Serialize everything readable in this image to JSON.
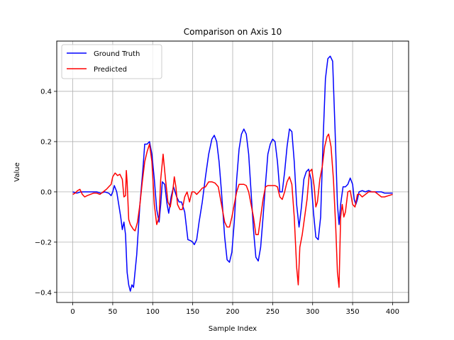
{
  "chart_data": {
    "type": "line",
    "title": "Comparison on Axis 10",
    "xlabel": "Sample Index",
    "ylabel": "Value",
    "xlim": [
      -20,
      420
    ],
    "ylim": [
      -0.44,
      0.6
    ],
    "xticks": [
      0,
      50,
      100,
      150,
      200,
      250,
      300,
      350,
      400
    ],
    "yticks": [
      -0.4,
      -0.2,
      0.0,
      0.2,
      0.4
    ],
    "xtick_labels": [
      "0",
      "50",
      "100",
      "150",
      "200",
      "250",
      "300",
      "350",
      "400"
    ],
    "ytick_labels": [
      "−0.4",
      "−0.2",
      "0.0",
      "0.2",
      "0.4"
    ],
    "grid": true,
    "legend_position": "top-left",
    "series": [
      {
        "name": "Ground Truth",
        "color": "#0000ff",
        "points": [
          [
            0,
            0.0
          ],
          [
            5,
            -0.005
          ],
          [
            10,
            0.0
          ],
          [
            20,
            0.0
          ],
          [
            30,
            0.0
          ],
          [
            35,
            -0.005
          ],
          [
            40,
            0.0
          ],
          [
            45,
            -0.005
          ],
          [
            48,
            -0.015
          ],
          [
            50,
            0.0
          ],
          [
            52,
            0.025
          ],
          [
            55,
            0.0
          ],
          [
            58,
            -0.06
          ],
          [
            60,
            -0.1
          ],
          [
            62,
            -0.15
          ],
          [
            64,
            -0.12
          ],
          [
            66,
            -0.17
          ],
          [
            68,
            -0.32
          ],
          [
            70,
            -0.37
          ],
          [
            72,
            -0.395
          ],
          [
            74,
            -0.37
          ],
          [
            76,
            -0.38
          ],
          [
            80,
            -0.25
          ],
          [
            84,
            -0.05
          ],
          [
            88,
            0.1
          ],
          [
            90,
            0.19
          ],
          [
            93,
            0.19
          ],
          [
            96,
            0.2
          ],
          [
            99,
            0.15
          ],
          [
            102,
            0.05
          ],
          [
            105,
            -0.07
          ],
          [
            108,
            -0.12
          ],
          [
            110,
            -0.05
          ],
          [
            112,
            0.04
          ],
          [
            115,
            0.03
          ],
          [
            118,
            -0.05
          ],
          [
            120,
            -0.085
          ],
          [
            123,
            -0.02
          ],
          [
            126,
            0.02
          ],
          [
            128,
            0.0
          ],
          [
            130,
            -0.02
          ],
          [
            133,
            -0.04
          ],
          [
            136,
            -0.04
          ],
          [
            140,
            -0.08
          ],
          [
            144,
            -0.19
          ],
          [
            148,
            -0.195
          ],
          [
            150,
            -0.2
          ],
          [
            152,
            -0.21
          ],
          [
            155,
            -0.19
          ],
          [
            158,
            -0.12
          ],
          [
            162,
            -0.04
          ],
          [
            166,
            0.06
          ],
          [
            170,
            0.15
          ],
          [
            174,
            0.21
          ],
          [
            177,
            0.225
          ],
          [
            180,
            0.2
          ],
          [
            183,
            0.12
          ],
          [
            186,
            0.0
          ],
          [
            190,
            -0.18
          ],
          [
            193,
            -0.27
          ],
          [
            196,
            -0.28
          ],
          [
            199,
            -0.24
          ],
          [
            202,
            -0.12
          ],
          [
            205,
            0.05
          ],
          [
            208,
            0.17
          ],
          [
            211,
            0.23
          ],
          [
            214,
            0.25
          ],
          [
            217,
            0.23
          ],
          [
            220,
            0.15
          ],
          [
            223,
            0.0
          ],
          [
            226,
            -0.15
          ],
          [
            229,
            -0.26
          ],
          [
            232,
            -0.275
          ],
          [
            235,
            -0.22
          ],
          [
            238,
            -0.1
          ],
          [
            241,
            0.03
          ],
          [
            244,
            0.15
          ],
          [
            247,
            0.19
          ],
          [
            250,
            0.21
          ],
          [
            253,
            0.2
          ],
          [
            256,
            0.12
          ],
          [
            259,
            0.0
          ],
          [
            262,
            0.0
          ],
          [
            265,
            0.08
          ],
          [
            268,
            0.18
          ],
          [
            271,
            0.25
          ],
          [
            274,
            0.24
          ],
          [
            277,
            0.12
          ],
          [
            280,
            -0.05
          ],
          [
            283,
            -0.14
          ],
          [
            286,
            -0.06
          ],
          [
            289,
            0.05
          ],
          [
            292,
            0.08
          ],
          [
            295,
            0.09
          ],
          [
            298,
            0.05
          ],
          [
            301,
            -0.08
          ],
          [
            304,
            -0.18
          ],
          [
            307,
            -0.19
          ],
          [
            310,
            -0.1
          ],
          [
            313,
            0.2
          ],
          [
            316,
            0.45
          ],
          [
            319,
            0.53
          ],
          [
            322,
            0.54
          ],
          [
            325,
            0.52
          ],
          [
            328,
            0.25
          ],
          [
            331,
            -0.05
          ],
          [
            333,
            -0.13
          ],
          [
            335,
            -0.05
          ],
          [
            338,
            0.02
          ],
          [
            341,
            0.02
          ],
          [
            344,
            0.03
          ],
          [
            347,
            0.055
          ],
          [
            350,
            0.03
          ],
          [
            352,
            -0.03
          ],
          [
            354,
            -0.05
          ],
          [
            356,
            -0.03
          ],
          [
            358,
            0.0
          ],
          [
            362,
            0.005
          ],
          [
            366,
            0.0
          ],
          [
            370,
            0.005
          ],
          [
            374,
            0.0
          ],
          [
            378,
            0.0
          ],
          [
            382,
            0.0
          ],
          [
            386,
            0.0
          ],
          [
            390,
            -0.005
          ],
          [
            395,
            -0.005
          ],
          [
            400,
            -0.005
          ]
        ]
      },
      {
        "name": "Predicted",
        "color": "#ff0000",
        "points": [
          [
            0,
            -0.01
          ],
          [
            3,
            -0.005
          ],
          [
            6,
            0.005
          ],
          [
            9,
            0.01
          ],
          [
            12,
            -0.01
          ],
          [
            15,
            -0.02
          ],
          [
            18,
            -0.015
          ],
          [
            22,
            -0.01
          ],
          [
            26,
            -0.005
          ],
          [
            30,
            -0.005
          ],
          [
            34,
            -0.01
          ],
          [
            38,
            0.0
          ],
          [
            42,
            0.01
          ],
          [
            45,
            0.02
          ],
          [
            48,
            0.03
          ],
          [
            50,
            0.06
          ],
          [
            53,
            0.075
          ],
          [
            56,
            0.065
          ],
          [
            59,
            0.07
          ],
          [
            62,
            0.05
          ],
          [
            64,
            -0.02
          ],
          [
            66,
            -0.015
          ],
          [
            67,
            0.085
          ],
          [
            68,
            0.04
          ],
          [
            70,
            -0.11
          ],
          [
            72,
            -0.13
          ],
          [
            74,
            -0.14
          ],
          [
            76,
            -0.15
          ],
          [
            78,
            -0.155
          ],
          [
            81,
            -0.12
          ],
          [
            84,
            -0.05
          ],
          [
            87,
            0.04
          ],
          [
            90,
            0.12
          ],
          [
            93,
            0.16
          ],
          [
            96,
            0.19
          ],
          [
            99,
            0.12
          ],
          [
            102,
            -0.05
          ],
          [
            105,
            -0.13
          ],
          [
            108,
            -0.1
          ],
          [
            110,
            0.05
          ],
          [
            113,
            0.15
          ],
          [
            116,
            0.05
          ],
          [
            119,
            -0.04
          ],
          [
            122,
            -0.06
          ],
          [
            125,
            0.0
          ],
          [
            127,
            0.06
          ],
          [
            129,
            0.02
          ],
          [
            131,
            -0.05
          ],
          [
            134,
            -0.07
          ],
          [
            137,
            -0.07
          ],
          [
            140,
            -0.02
          ],
          [
            143,
            0.0
          ],
          [
            146,
            -0.04
          ],
          [
            149,
            0.0
          ],
          [
            152,
            0.0
          ],
          [
            155,
            -0.01
          ],
          [
            158,
            0.0
          ],
          [
            162,
            0.015
          ],
          [
            166,
            0.02
          ],
          [
            170,
            0.04
          ],
          [
            174,
            0.04
          ],
          [
            178,
            0.035
          ],
          [
            182,
            0.02
          ],
          [
            186,
            -0.05
          ],
          [
            190,
            -0.12
          ],
          [
            193,
            -0.14
          ],
          [
            196,
            -0.14
          ],
          [
            199,
            -0.1
          ],
          [
            202,
            -0.05
          ],
          [
            205,
            0.0
          ],
          [
            208,
            0.03
          ],
          [
            211,
            0.03
          ],
          [
            214,
            0.03
          ],
          [
            217,
            0.025
          ],
          [
            220,
            0.0
          ],
          [
            223,
            -0.05
          ],
          [
            226,
            -0.1
          ],
          [
            229,
            -0.17
          ],
          [
            232,
            -0.17
          ],
          [
            235,
            -0.1
          ],
          [
            238,
            -0.03
          ],
          [
            241,
            0.02
          ],
          [
            244,
            0.025
          ],
          [
            247,
            0.025
          ],
          [
            250,
            0.025
          ],
          [
            253,
            0.025
          ],
          [
            256,
            0.02
          ],
          [
            259,
            -0.02
          ],
          [
            262,
            -0.03
          ],
          [
            265,
            0.0
          ],
          [
            268,
            0.04
          ],
          [
            271,
            0.06
          ],
          [
            274,
            0.03
          ],
          [
            277,
            -0.1
          ],
          [
            280,
            -0.3
          ],
          [
            282,
            -0.37
          ],
          [
            284,
            -0.22
          ],
          [
            287,
            -0.17
          ],
          [
            290,
            -0.1
          ],
          [
            293,
            -0.03
          ],
          [
            296,
            0.08
          ],
          [
            299,
            0.09
          ],
          [
            302,
            0.02
          ],
          [
            304,
            -0.06
          ],
          [
            306,
            -0.04
          ],
          [
            309,
            0.05
          ],
          [
            312,
            0.1
          ],
          [
            315,
            0.18
          ],
          [
            318,
            0.22
          ],
          [
            320,
            0.23
          ],
          [
            323,
            0.18
          ],
          [
            326,
            0.05
          ],
          [
            329,
            -0.15
          ],
          [
            331,
            -0.32
          ],
          [
            333,
            -0.38
          ],
          [
            335,
            -0.1
          ],
          [
            337,
            -0.05
          ],
          [
            339,
            -0.1
          ],
          [
            341,
            -0.08
          ],
          [
            344,
            0.0
          ],
          [
            347,
            0.005
          ],
          [
            350,
            -0.05
          ],
          [
            353,
            -0.06
          ],
          [
            356,
            -0.01
          ],
          [
            359,
            -0.01
          ],
          [
            362,
            -0.02
          ],
          [
            366,
            -0.01
          ],
          [
            370,
            0.0
          ],
          [
            374,
            0.0
          ],
          [
            378,
            0.0
          ],
          [
            382,
            -0.01
          ],
          [
            386,
            -0.02
          ],
          [
            390,
            -0.02
          ],
          [
            395,
            -0.015
          ],
          [
            400,
            -0.01
          ]
        ]
      }
    ]
  }
}
